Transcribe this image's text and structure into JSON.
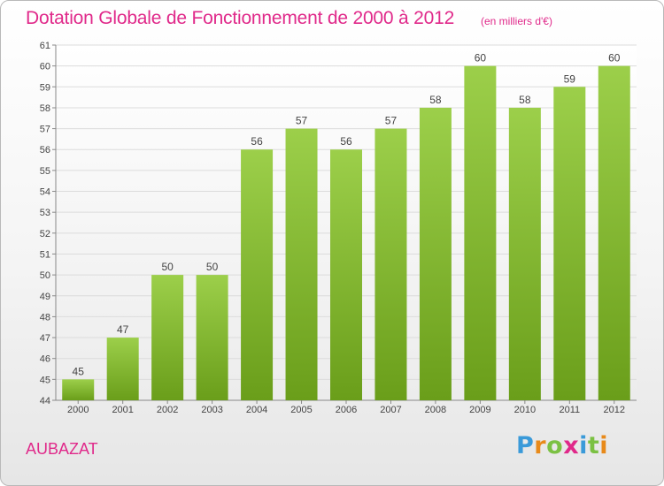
{
  "title": "Dotation Globale de Fonctionnement de 2000 à 2012",
  "unit_label": "(en milliers d'€)",
  "commune": "AUBAZAT",
  "logo": {
    "letters": [
      "P",
      "r",
      "o",
      "x",
      "i",
      "t",
      "i"
    ],
    "colors": [
      "#3a9ad9",
      "#e88a1a",
      "#7bc143",
      "#e0298a",
      "#3a9ad9",
      "#7bc143",
      "#e88a1a"
    ]
  },
  "chart_data": {
    "type": "bar",
    "categories": [
      "2000",
      "2001",
      "2002",
      "2003",
      "2004",
      "2005",
      "2006",
      "2007",
      "2008",
      "2009",
      "2010",
      "2011",
      "2012"
    ],
    "values": [
      45,
      47,
      50,
      50,
      56,
      57,
      56,
      57,
      58,
      60,
      58,
      59,
      60
    ],
    "data_labels": [
      "45",
      "47",
      "50",
      "50",
      "56",
      "57",
      "56",
      "57",
      "58",
      "60",
      "58",
      "59",
      "60"
    ],
    "yticks": [
      "44",
      "45",
      "46",
      "47",
      "48",
      "49",
      "50",
      "51",
      "52",
      "53",
      "54",
      "55",
      "56",
      "57",
      "58",
      "59",
      "60",
      "61"
    ],
    "ylim": [
      44,
      61
    ],
    "grid": true,
    "bar_color_top": "#9ccf4a",
    "bar_color_bottom": "#6a9e1a"
  }
}
